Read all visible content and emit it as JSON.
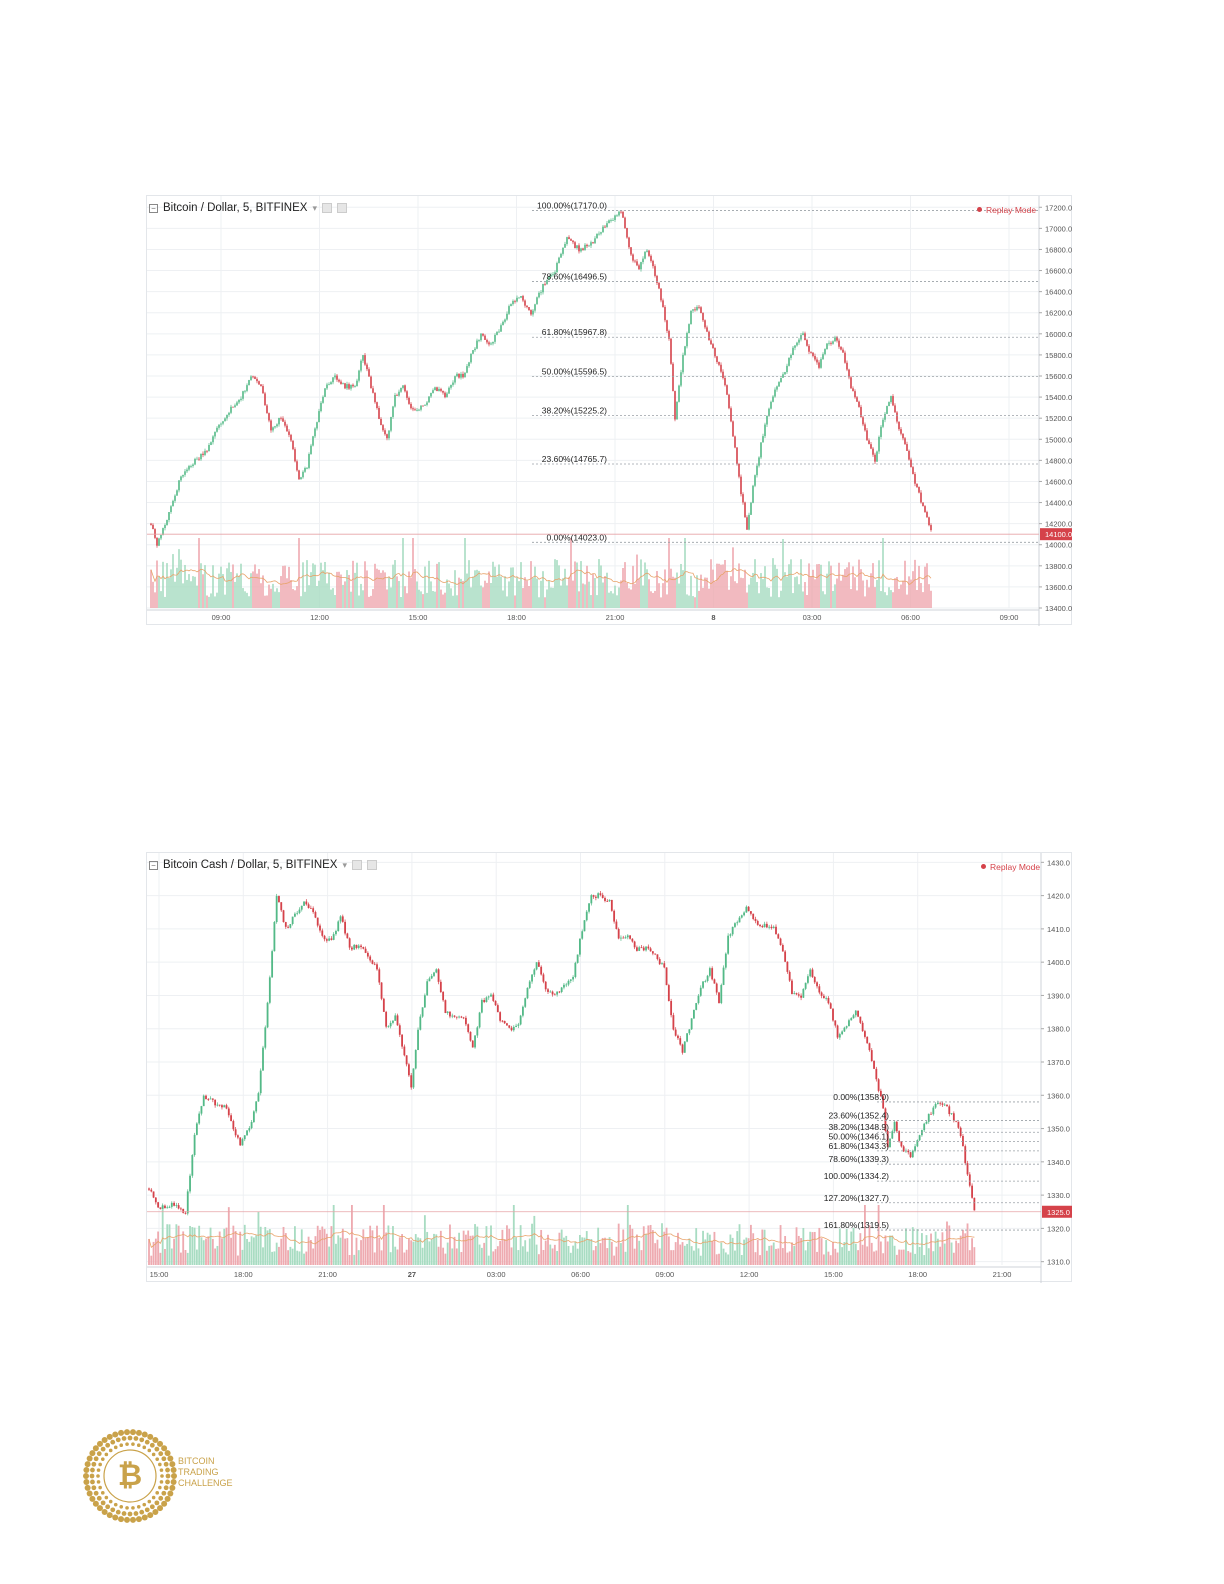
{
  "colors": {
    "up": "#53b987",
    "down": "#d5424a",
    "volume_up": "#a8dcc2",
    "volume_down": "#eeaab0",
    "ma_line": "#e8a36a",
    "grid": "#eef0f3",
    "fib_line": "#9aa0a6",
    "price_tag": "#d5424a",
    "gold": "#c9a24a"
  },
  "chart_data": [
    {
      "type": "candlestick",
      "title": "Bitcoin / Dollar, 5, BITFINEX",
      "status": "Replay Mode",
      "ylim": [
        13400,
        17250
      ],
      "yticks": [
        "17200.0",
        "17000.0",
        "16800.0",
        "16600.0",
        "16400.0",
        "16200.0",
        "16000.0",
        "15800.0",
        "15600.0",
        "15400.0",
        "15200.0",
        "15000.0",
        "14800.0",
        "14600.0",
        "14400.0",
        "14200.0",
        "14000.0",
        "13800.0",
        "13600.0",
        "13400.0"
      ],
      "xticks": [
        "09:00",
        "12:00",
        "15:00",
        "18:00",
        "21:00",
        "8",
        "03:00",
        "06:00",
        "09:00"
      ],
      "last_price_label": "14100.0",
      "last_price": 14100,
      "price_path": [
        [
          0,
          14200
        ],
        [
          3,
          14000
        ],
        [
          8,
          14250
        ],
        [
          15,
          14650
        ],
        [
          22,
          14800
        ],
        [
          28,
          14900
        ],
        [
          33,
          15100
        ],
        [
          40,
          15300
        ],
        [
          45,
          15400
        ],
        [
          50,
          15600
        ],
        [
          55,
          15500
        ],
        [
          60,
          15100
        ],
        [
          65,
          15200
        ],
        [
          70,
          15000
        ],
        [
          74,
          14600
        ],
        [
          78,
          14750
        ],
        [
          82,
          15100
        ],
        [
          87,
          15500
        ],
        [
          92,
          15600
        ],
        [
          97,
          15500
        ],
        [
          102,
          15500
        ],
        [
          106,
          15800
        ],
        [
          110,
          15500
        ],
        [
          114,
          15200
        ],
        [
          118,
          15000
        ],
        [
          122,
          15400
        ],
        [
          126,
          15500
        ],
        [
          130,
          15300
        ],
        [
          136,
          15300
        ],
        [
          142,
          15500
        ],
        [
          147,
          15400
        ],
        [
          152,
          15600
        ],
        [
          156,
          15600
        ],
        [
          160,
          15800
        ],
        [
          165,
          16000
        ],
        [
          170,
          15900
        ],
        [
          176,
          16100
        ],
        [
          180,
          16300
        ],
        [
          185,
          16350
        ],
        [
          190,
          16200
        ],
        [
          196,
          16450
        ],
        [
          202,
          16600
        ],
        [
          208,
          16900
        ],
        [
          214,
          16800
        ],
        [
          220,
          16850
        ],
        [
          226,
          17000
        ],
        [
          231,
          17100
        ],
        [
          235,
          17170
        ],
        [
          238,
          16900
        ],
        [
          241,
          16700
        ],
        [
          244,
          16600
        ],
        [
          247,
          16800
        ],
        [
          250,
          16700
        ],
        [
          253,
          16500
        ],
        [
          256,
          16250
        ],
        [
          259,
          15950
        ],
        [
          262,
          15200
        ],
        [
          266,
          15800
        ],
        [
          270,
          16200
        ],
        [
          274,
          16250
        ],
        [
          278,
          16000
        ],
        [
          282,
          15800
        ],
        [
          286,
          15600
        ],
        [
          289,
          15300
        ],
        [
          292,
          14900
        ],
        [
          295,
          14500
        ],
        [
          298,
          14150
        ],
        [
          301,
          14550
        ],
        [
          305,
          14950
        ],
        [
          309,
          15300
        ],
        [
          313,
          15500
        ],
        [
          318,
          15700
        ],
        [
          322,
          15900
        ],
        [
          326,
          16000
        ],
        [
          330,
          15800
        ],
        [
          334,
          15700
        ],
        [
          338,
          15900
        ],
        [
          342,
          15950
        ],
        [
          346,
          15800
        ],
        [
          350,
          15500
        ],
        [
          354,
          15300
        ],
        [
          358,
          15000
        ],
        [
          362,
          14800
        ],
        [
          366,
          15200
        ],
        [
          370,
          15400
        ],
        [
          374,
          15100
        ],
        [
          378,
          14900
        ],
        [
          382,
          14600
        ],
        [
          386,
          14350
        ],
        [
          390,
          14150
        ]
      ],
      "fib_levels": [
        {
          "label": "100.00%(17170.0)",
          "price": 17170.0
        },
        {
          "label": "78.60%(16496.5)",
          "price": 16496.5
        },
        {
          "label": "61.80%(15967.8)",
          "price": 15967.8
        },
        {
          "label": "50.00%(15596.5)",
          "price": 15596.5
        },
        {
          "label": "38.20%(15225.2)",
          "price": 15225.2
        },
        {
          "label": "23.60%(14765.7)",
          "price": 14765.7
        },
        {
          "label": "0.00%(14023.0)",
          "price": 14023.0
        }
      ]
    },
    {
      "type": "candlestick",
      "title": "Bitcoin Cash / Dollar, 5, BITFINEX",
      "status": "Replay Mode",
      "ylim": [
        1309,
        1431
      ],
      "yticks": [
        "1430.0",
        "1420.0",
        "1410.0",
        "1400.0",
        "1390.0",
        "1380.0",
        "1370.0",
        "1360.0",
        "1350.0",
        "1340.0",
        "1330.0",
        "1320.0",
        "1310.0"
      ],
      "xticks": [
        "15:00",
        "18:00",
        "21:00",
        "27",
        "03:00",
        "06:00",
        "09:00",
        "12:00",
        "15:00",
        "18:00",
        "21:00"
      ],
      "last_price_label": "1325.0",
      "last_price": 1325,
      "price_path": [
        [
          0,
          1332
        ],
        [
          4,
          1326
        ],
        [
          10,
          1327
        ],
        [
          16,
          1325
        ],
        [
          20,
          1348
        ],
        [
          24,
          1360
        ],
        [
          28,
          1358
        ],
        [
          34,
          1356
        ],
        [
          40,
          1345
        ],
        [
          44,
          1350
        ],
        [
          48,
          1360
        ],
        [
          52,
          1388
        ],
        [
          56,
          1420
        ],
        [
          60,
          1410
        ],
        [
          64,
          1414
        ],
        [
          68,
          1418
        ],
        [
          72,
          1415
        ],
        [
          76,
          1408
        ],
        [
          80,
          1406
        ],
        [
          84,
          1414
        ],
        [
          88,
          1404
        ],
        [
          92,
          1405
        ],
        [
          96,
          1402
        ],
        [
          100,
          1398
        ],
        [
          104,
          1380
        ],
        [
          108,
          1384
        ],
        [
          112,
          1372
        ],
        [
          115,
          1363
        ],
        [
          118,
          1380
        ],
        [
          122,
          1394
        ],
        [
          126,
          1398
        ],
        [
          130,
          1385
        ],
        [
          134,
          1383
        ],
        [
          138,
          1383
        ],
        [
          142,
          1374
        ],
        [
          146,
          1388
        ],
        [
          150,
          1390
        ],
        [
          154,
          1383
        ],
        [
          158,
          1380
        ],
        [
          162,
          1381
        ],
        [
          166,
          1392
        ],
        [
          170,
          1400
        ],
        [
          174,
          1392
        ],
        [
          178,
          1390
        ],
        [
          182,
          1393
        ],
        [
          186,
          1396
        ],
        [
          190,
          1410
        ],
        [
          194,
          1420
        ],
        [
          198,
          1420
        ],
        [
          202,
          1418
        ],
        [
          206,
          1407
        ],
        [
          210,
          1408
        ],
        [
          214,
          1404
        ],
        [
          218,
          1404
        ],
        [
          222,
          1402
        ],
        [
          226,
          1398
        ],
        [
          230,
          1380
        ],
        [
          234,
          1373
        ],
        [
          238,
          1383
        ],
        [
          242,
          1392
        ],
        [
          246,
          1398
        ],
        [
          250,
          1388
        ],
        [
          254,
          1408
        ],
        [
          258,
          1412
        ],
        [
          262,
          1416
        ],
        [
          266,
          1412
        ],
        [
          270,
          1411
        ],
        [
          274,
          1410
        ],
        [
          278,
          1403
        ],
        [
          282,
          1391
        ],
        [
          286,
          1390
        ],
        [
          290,
          1398
        ],
        [
          294,
          1391
        ],
        [
          298,
          1388
        ],
        [
          302,
          1378
        ],
        [
          306,
          1381
        ],
        [
          310,
          1386
        ],
        [
          314,
          1378
        ],
        [
          318,
          1368
        ],
        [
          322,
          1356
        ],
        [
          324,
          1344
        ],
        [
          327,
          1352
        ],
        [
          330,
          1344
        ],
        [
          334,
          1342
        ],
        [
          338,
          1348
        ],
        [
          342,
          1354
        ],
        [
          346,
          1358
        ],
        [
          350,
          1356
        ],
        [
          354,
          1352
        ],
        [
          356,
          1348
        ],
        [
          358,
          1340
        ],
        [
          360,
          1333
        ],
        [
          362,
          1325
        ]
      ],
      "fib_levels": [
        {
          "label": "0.00%(1358.0)",
          "price": 1358.0
        },
        {
          "label": "23.60%(1352.4)",
          "price": 1352.4
        },
        {
          "label": "38.20%(1348.9)",
          "price": 1348.9
        },
        {
          "label": "50.00%(1346.1)",
          "price": 1346.1
        },
        {
          "label": "61.80%(1343.3)",
          "price": 1343.3
        },
        {
          "label": "78.60%(1339.3)",
          "price": 1339.3
        },
        {
          "label": "100.00%(1334.2)",
          "price": 1334.2
        },
        {
          "label": "127.20%(1327.7)",
          "price": 1327.7
        },
        {
          "label": "161.80%(1319.5)",
          "price": 1319.5
        }
      ]
    }
  ],
  "logo": {
    "line1": "BITCOIN",
    "line2": "TRADING",
    "line3": "CHALLENGE",
    "glyph": "₿"
  }
}
